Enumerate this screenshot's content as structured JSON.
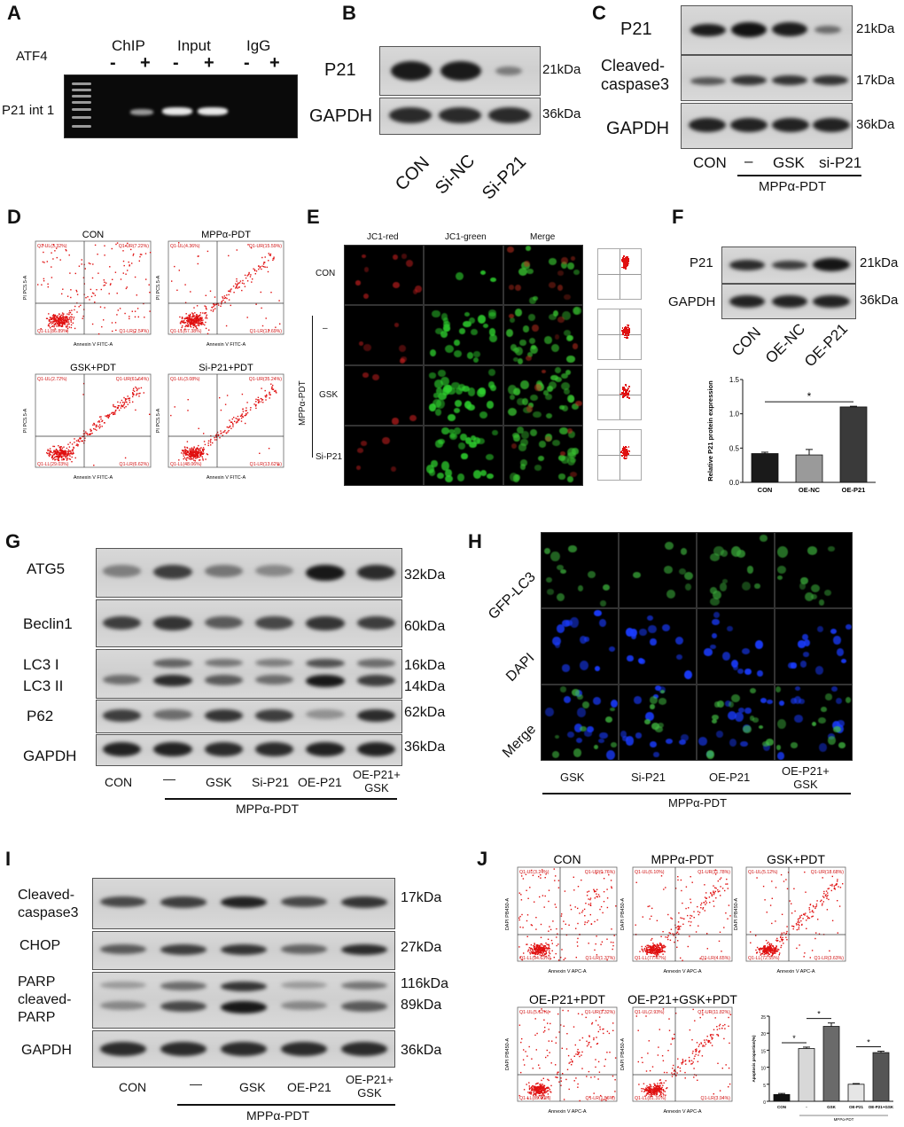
{
  "panels": {
    "A": {
      "letter": "A",
      "factor_label": "ATF4",
      "lanes": [
        "-",
        "+",
        "-",
        "+",
        "-",
        "+"
      ],
      "groups": [
        "ChIP",
        "Input",
        "IgG"
      ],
      "row_label": "P21 int 1"
    },
    "B": {
      "letter": "B",
      "rows": [
        {
          "name": "P21",
          "kda": "21kDa"
        },
        {
          "name": "GAPDH",
          "kda": "36kDa"
        }
      ],
      "lanes": [
        "CON",
        "Si-NC",
        "Si-P21"
      ]
    },
    "C": {
      "letter": "C",
      "rows": [
        {
          "name": "P21",
          "kda": "21kDa"
        },
        {
          "name": "Cleaved-\ncaspase3",
          "kda": "17kDa"
        },
        {
          "name": "GAPDH",
          "kda": "36kDa"
        }
      ],
      "lanes": [
        "CON",
        "–",
        "GSK",
        "si-P21"
      ],
      "group_label": "MPPα-PDT"
    },
    "D": {
      "letter": "D",
      "plots": [
        {
          "title": "CON",
          "ul": "Q1-UL(3.32%)",
          "ur": "Q1-UR(7.22%)",
          "ll": "Q1-LL(86.89%)",
          "lr": "Q1-LR(2.57%)"
        },
        {
          "title": "MPPα-PDT",
          "ul": "Q1-UL(4.36%)",
          "ur": "Q1-UR(15.59%)",
          "ll": "Q1-LL(67.38%)",
          "lr": "Q1-LR(12.69%)"
        },
        {
          "title": "GSK+PDT",
          "ul": "Q1-UL(2.72%)",
          "ur": "Q1-UR(61.64%)",
          "ll": "Q1-LL(29.03%)",
          "lr": "Q1-LR(6.62%)"
        },
        {
          "title": "Si-P21+PDT",
          "ul": "Q1-UL(3.08%)",
          "ur": "Q1-UR(35.24%)",
          "ll": "Q1-LL(48.06%)",
          "lr": "Q1-LR(13.62%)"
        }
      ],
      "xaxis": "Annexin V FITC-A",
      "yaxis": "PI PC5.5-A"
    },
    "E": {
      "letter": "E",
      "columns": [
        "JC1-red",
        "JC1-green",
        "Merge"
      ],
      "rows": [
        "CON",
        "–",
        "GSK",
        "Si-P21"
      ],
      "group_label": "MPPα-PDT"
    },
    "F": {
      "letter": "F",
      "rows": [
        {
          "name": "P21",
          "kda": "21kDa"
        },
        {
          "name": "GAPDH",
          "kda": "36kDa"
        }
      ],
      "lanes": [
        "CON",
        "OE-NC",
        "OE-P21"
      ],
      "sig": "*"
    },
    "G": {
      "letter": "G",
      "rows": [
        {
          "name": "ATG5",
          "kda": "32kDa"
        },
        {
          "name": "Beclin1",
          "kda": "60kDa"
        },
        {
          "name": "LC3 I",
          "kda": "16kDa"
        },
        {
          "name": "LC3 II",
          "kda": "14kDa"
        },
        {
          "name": "P62",
          "kda": "62kDa"
        },
        {
          "name": "GAPDH",
          "kda": "36kDa"
        }
      ],
      "lanes": [
        "CON",
        "—",
        "GSK",
        "Si-P21",
        "OE-P21",
        "OE-P21+\nGSK"
      ],
      "group_label": "MPPα-PDT"
    },
    "H": {
      "letter": "H",
      "rows": [
        "GFP-LC3",
        "DAPI",
        "Merge"
      ],
      "columns": [
        "GSK",
        "Si-P21",
        "OE-P21",
        "OE-P21+\nGSK"
      ],
      "group_label": "MPPα-PDT"
    },
    "I": {
      "letter": "I",
      "rows": [
        {
          "name": "Cleaved-\ncaspase3",
          "kda": "17kDa"
        },
        {
          "name": "CHOP",
          "kda": "27kDa"
        },
        {
          "name": "PARP\ncleaved-\nPARP",
          "kda": "116kDa\n89kDa"
        },
        {
          "name": "GAPDH",
          "kda": "36kDa"
        }
      ],
      "lanes": [
        "CON",
        "—",
        "GSK",
        "OE-P21",
        "OE-P21+\nGSK"
      ],
      "group_label": "MPPα-PDT"
    },
    "J": {
      "letter": "J",
      "plots": [
        {
          "title": "CON",
          "ul": "Q1-UL(3.24%)",
          "ur": "Q1-UR(0.76%)",
          "ll": "Q1-LL(94.63%)",
          "lr": "Q1-LR(1.37%)"
        },
        {
          "title": "MPPα-PDT",
          "ul": "Q1-UL(6.10%)",
          "ur": "Q1-UR(11.78%)",
          "ll": "Q1-LL(77.47%)",
          "lr": "Q1-LR(4.65%)"
        },
        {
          "title": "GSK+PDT",
          "ul": "Q1-UL(5.12%)",
          "ur": "Q1-UR(18.68%)",
          "ll": "Q1-LL(72.55%)",
          "lr": "Q1-LR(3.63%)"
        },
        {
          "title": "OE-P21+PDT",
          "ul": "Q1-UL(5.62%)",
          "ur": "Q1-UR(3.32%)",
          "ll": "Q1-LL(89.60%)",
          "lr": "Q1-LR(1.56%)"
        },
        {
          "title": "OE-P21+GSK+PDT",
          "ul": "Q1-UL(2.93%)",
          "ur": "Q1-UR(11.82%)",
          "ll": "Q1-LL(81.31%)",
          "lr": "Q1-LR(3.94%)"
        }
      ],
      "xaxis": "Annexin V APC-A",
      "yaxis": "DAPI PB450-A"
    }
  },
  "chart_data": [
    {
      "type": "bar",
      "panel": "F",
      "categories": [
        "CON",
        "OE-NC",
        "OE-P21"
      ],
      "values": [
        0.42,
        0.4,
        1.1
      ],
      "errors": [
        0.02,
        0.08,
        0.01
      ],
      "ylabel": "Relative P21 protein expression",
      "yticks": [
        "0.0",
        "0.5",
        "1.0",
        "1.5"
      ],
      "ylim": [
        0,
        1.5
      ],
      "significance": [
        {
          "from": 0,
          "to": 2,
          "label": "*"
        }
      ]
    },
    {
      "type": "bar",
      "panel": "J",
      "categories": [
        "CON",
        "-",
        "GSK",
        "OE-P21",
        "OE-P21+GSK"
      ],
      "values": [
        2,
        15.5,
        22,
        5,
        14.3
      ],
      "errors": [
        0.3,
        0.4,
        1.0,
        0.2,
        0.4
      ],
      "ylabel": "Apoptosis proportion(%)",
      "yticks": [
        "0",
        "5",
        "10",
        "15",
        "20",
        "25"
      ],
      "ylim": [
        0,
        25
      ],
      "group_label": "MPPα-PDT",
      "significance": [
        {
          "from": 0,
          "to": 1,
          "label": "*"
        },
        {
          "from": 1,
          "to": 2,
          "label": "*"
        },
        {
          "from": 3,
          "to": 4,
          "label": "*"
        }
      ]
    }
  ]
}
